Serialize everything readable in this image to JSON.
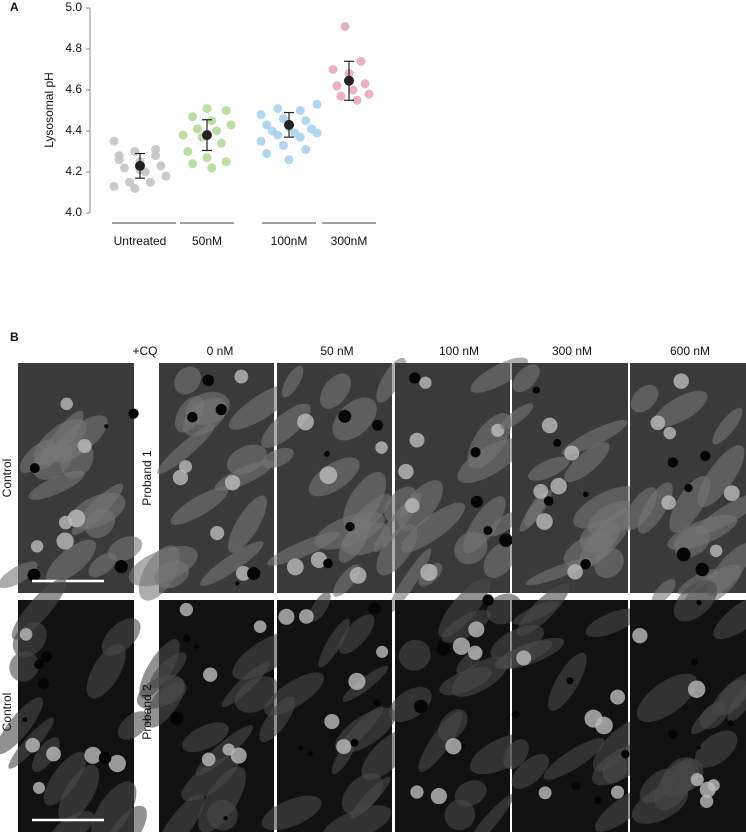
{
  "panel_a": {
    "label": "A"
  },
  "chart_data": {
    "type": "strip",
    "y_label": "Lysosomal pH",
    "categories": [
      "Untreated",
      "50nM",
      "100nM",
      "300nM"
    ],
    "ylim": [
      4.0,
      5.0
    ],
    "yticks": [
      {
        "value": 4.0,
        "label": "4.0"
      },
      {
        "value": 4.2,
        "label": "4.2"
      },
      {
        "value": 4.4,
        "label": "4.4"
      },
      {
        "value": 4.6,
        "label": "4.6"
      },
      {
        "value": 4.8,
        "label": "4.8"
      },
      {
        "value": 5.0,
        "label": "5.0"
      }
    ],
    "mean_color": "#222222",
    "groups": [
      {
        "color": "#c4c4c4",
        "values": [
          4.35,
          4.3,
          4.28,
          4.26,
          4.25,
          4.23,
          4.22,
          4.2,
          4.18,
          4.15,
          4.15,
          4.13,
          4.12,
          4.31,
          4.28,
          4.21
        ],
        "mean": 4.23,
        "error": 0.06
      },
      {
        "color": "#b5d99a",
        "values": [
          4.51,
          4.5,
          4.47,
          4.45,
          4.43,
          4.41,
          4.4,
          4.38,
          4.37,
          4.34,
          4.3,
          4.27,
          4.25,
          4.24,
          4.22
        ],
        "mean": 4.38,
        "error": 0.075
      },
      {
        "color": "#a9d2ee",
        "values": [
          4.53,
          4.51,
          4.5,
          4.48,
          4.46,
          4.45,
          4.43,
          4.42,
          4.41,
          4.4,
          4.39,
          4.39,
          4.38,
          4.37,
          4.35,
          4.33,
          4.31,
          4.29,
          4.26
        ],
        "mean": 4.43,
        "error": 0.06
      },
      {
        "color": "#e8a9be",
        "values": [
          4.91,
          4.74,
          4.7,
          4.68,
          4.63,
          4.62,
          4.6,
          4.58,
          4.57,
          4.55
        ],
        "mean": 4.645,
        "error": 0.095
      }
    ]
  },
  "panel_b": {
    "label": "B",
    "treatment": "+CQ",
    "columns": [
      "0 nM",
      "50 nM",
      "100 nM",
      "300 nM",
      "600 nM"
    ],
    "rows": [
      {
        "control": "Control",
        "proband": "Proband 1"
      },
      {
        "control": "Control",
        "proband": "Proband 2"
      }
    ]
  }
}
